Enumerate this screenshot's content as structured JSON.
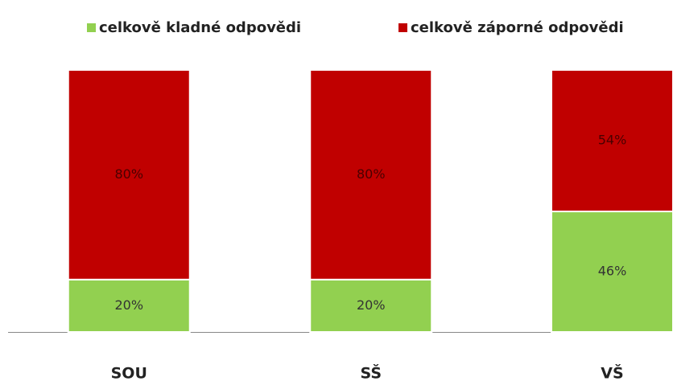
{
  "chart_data": {
    "type": "stacked_bar",
    "categories": [
      "SOU",
      "SŠ",
      "VŠ"
    ],
    "series": [
      {
        "name": "celkově kladné odpovědi",
        "color": "#92d050",
        "values": [
          20,
          20,
          46
        ],
        "value_labels": [
          "20%",
          "20%",
          "46%"
        ]
      },
      {
        "name": "celkově záporné odpovědi",
        "color": "#c00000",
        "values": [
          80,
          80,
          54
        ],
        "value_labels": [
          "80%",
          "80%",
          "54%"
        ]
      }
    ],
    "ylim": [
      0,
      100
    ]
  }
}
